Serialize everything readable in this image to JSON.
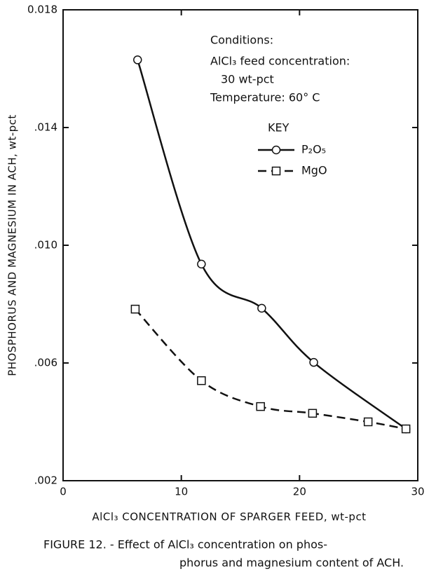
{
  "chart_data": {
    "type": "line",
    "x_label": "AlCl₃ CONCENTRATION OF SPARGER FEED, wt-pct",
    "y_label": "PHOSPHORUS AND MAGNESIUM IN ACH, wt-pct",
    "annotations": [
      "Conditions:",
      "AlCl₃ feed concentration:",
      "30 wt-pct",
      "Temperature: 60° C"
    ],
    "legend_title": "KEY",
    "caption": [
      "FIGURE 12. - Effect of AlCl₃ concentration on phos-",
      "phorus and magnesium content of ACH."
    ],
    "xlim": [
      0,
      30
    ],
    "xticks": [
      0,
      10,
      20,
      30
    ],
    "ylim": [
      0.002,
      0.018
    ],
    "yticks": [
      {
        "value": 0.002,
        "label": ".002"
      },
      {
        "value": 0.006,
        "label": ".006"
      },
      {
        "value": 0.01,
        "label": ".010"
      },
      {
        "value": 0.014,
        "label": ".014"
      },
      0.018
    ],
    "series": [
      {
        "name": "P₂O₅",
        "color": "#111111",
        "marker": "circle",
        "line_style": "solid",
        "x": [
          6.3,
          11.7,
          16.8,
          21.2,
          29.0
        ],
        "values": [
          0.0163,
          0.00936,
          0.00786,
          0.00602,
          0.00376
        ]
      },
      {
        "name": "MgO",
        "color": "#111111",
        "marker": "square",
        "line_style": "dashed",
        "x": [
          6.1,
          11.7,
          16.7,
          21.1,
          25.8,
          29.0
        ],
        "values": [
          0.00783,
          0.0054,
          0.00452,
          0.00429,
          0.004,
          0.00376
        ]
      }
    ]
  }
}
